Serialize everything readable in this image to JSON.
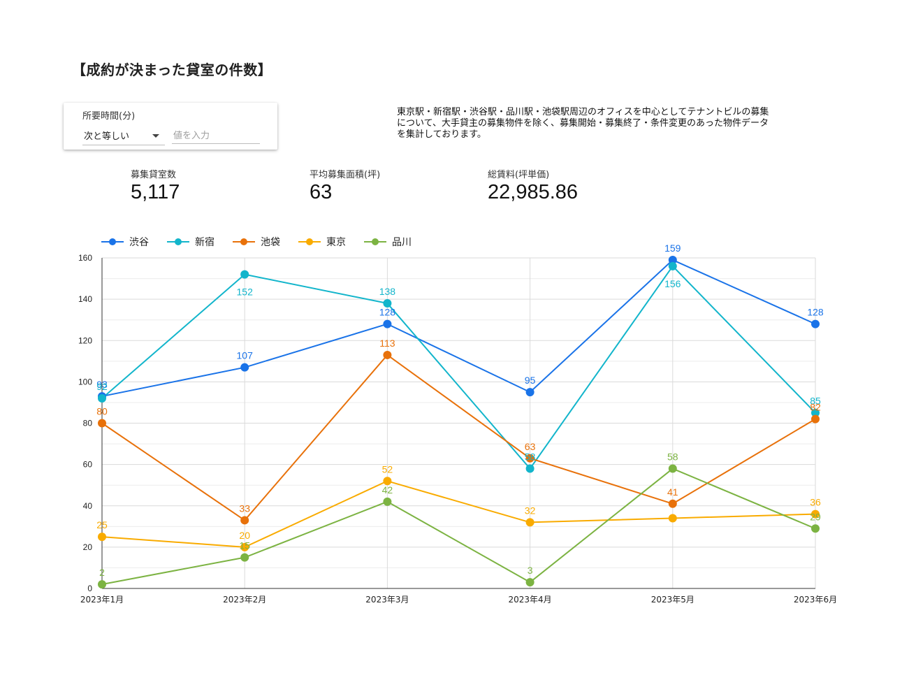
{
  "page": {
    "title": "【成約が決まった貸室の件数】"
  },
  "filter": {
    "label": "所要時間(分)",
    "operator": "次と等しい",
    "placeholder": "値を入力"
  },
  "description": "東京駅・新宿駅・渋谷駅・品川駅・池袋駅周辺のオフィスを中心としてテナントビルの募集\nについて、大手貸主の募集物件を除く、募集開始・募集終了・条件変更のあった物件データ\nを集計しております。",
  "kpis": [
    {
      "label": "募集貸室数",
      "value": "5,117"
    },
    {
      "label": "平均募集面積(坪)",
      "value": "63"
    },
    {
      "label": "総賃料(坪単価)",
      "value": "22,985.86"
    }
  ],
  "chart_data": {
    "type": "line",
    "categories": [
      "2023年1月",
      "2023年2月",
      "2023年3月",
      "2023年4月",
      "2023年5月",
      "2023年6月"
    ],
    "series": [
      {
        "name": "渋谷",
        "color": "#1a73e8",
        "values": [
          93,
          107,
          128,
          95,
          159,
          128
        ]
      },
      {
        "name": "新宿",
        "color": "#12b5cb",
        "values": [
          92,
          152,
          138,
          58,
          156,
          85
        ]
      },
      {
        "name": "池袋",
        "color": "#e8710a",
        "values": [
          80,
          33,
          113,
          63,
          41,
          82
        ]
      },
      {
        "name": "東京",
        "color": "#f9ab00",
        "values": [
          25,
          20,
          52,
          32,
          34,
          36
        ]
      },
      {
        "name": "品川",
        "color": "#7cb342",
        "values": [
          2,
          15,
          42,
          3,
          58,
          29
        ]
      }
    ],
    "data_labels": [
      [
        "93",
        "107",
        "128",
        "95",
        "159",
        "128"
      ],
      [
        "92",
        "152",
        "138",
        "58",
        "156",
        "85"
      ],
      [
        "80",
        "33",
        "113",
        "63",
        "41",
        "82"
      ],
      [
        "25",
        "20",
        "52",
        "32",
        "",
        "36"
      ],
      [
        "2",
        "15",
        "42",
        "3",
        "58",
        "29"
      ]
    ],
    "ylim": [
      0,
      160
    ],
    "yticks": [
      0,
      20,
      40,
      60,
      80,
      100,
      120,
      140,
      160
    ],
    "ytick_labels": [
      "0",
      "20",
      "40",
      "60",
      "80",
      "100",
      "120",
      "140",
      "160"
    ],
    "grid": true,
    "legend": "top-left",
    "title": "",
    "xlabel": "",
    "ylabel": ""
  }
}
